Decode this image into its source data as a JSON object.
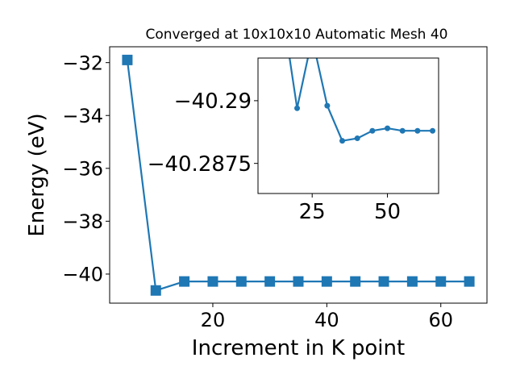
{
  "chart_data": [
    {
      "type": "line",
      "title": "Converged at 10x10x10 Automatic Mesh 40",
      "xlabel": "Increment in K point",
      "ylabel": "Energy (eV)",
      "xlim": [
        1.9,
        68.1
      ],
      "ylim": [
        -41.1,
        -31.4
      ],
      "xticks": [
        20,
        40,
        60
      ],
      "yticks": [
        -32,
        -34,
        -36,
        -38,
        -40
      ],
      "grid": false,
      "legend": "none",
      "marker": "square",
      "color": "#1f77b4",
      "x": [
        5,
        10,
        15,
        20,
        25,
        30,
        35,
        40,
        45,
        50,
        55,
        60,
        65
      ],
      "y": [
        -31.9,
        -40.62,
        -40.28,
        -40.28,
        -40.28,
        -40.28,
        -40.28,
        -40.28,
        -40.28,
        -40.28,
        -40.28,
        -40.28,
        -40.28
      ]
    },
    {
      "type": "line",
      "role": "inset",
      "xlim": [
        7,
        67
      ],
      "ylim": [
        -40.2863,
        -40.2917
      ],
      "xticks": [
        25,
        50
      ],
      "yticks": [
        -40.29,
        -40.2875
      ],
      "grid": false,
      "legend": "none",
      "marker": "circle",
      "color": "#1f77b4",
      "x": [
        15,
        20,
        25,
        30,
        35,
        40,
        45,
        50,
        55,
        60,
        65
      ],
      "y": [
        -40.2937,
        -40.2897,
        -40.2925,
        -40.2898,
        -40.2884,
        -40.2885,
        -40.2888,
        -40.2889,
        -40.2888,
        -40.2888,
        -40.2888
      ]
    }
  ]
}
